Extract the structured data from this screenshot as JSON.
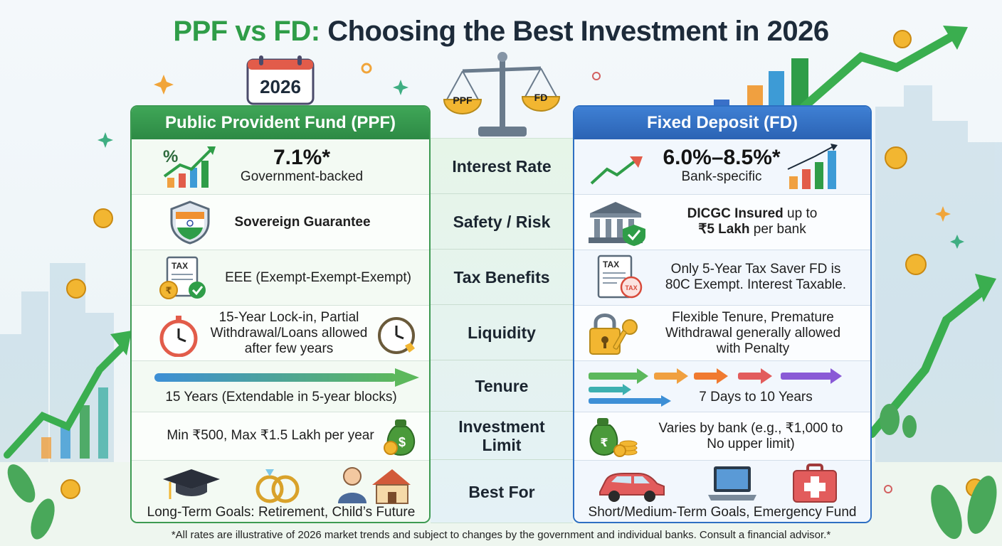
{
  "title": {
    "prefix": "PPF vs FD:",
    "rest": " Choosing the Best Investment in 2026"
  },
  "calendar_year": "2026",
  "scale": {
    "left": "PPF",
    "right": "FD"
  },
  "ppf": {
    "header": "Public Provident Fund (PPF)",
    "interest_rate": "7.1%*",
    "interest_note": "Government-backed",
    "safety": "Sovereign Guarantee",
    "tax": "EEE (Exempt-Exempt-Exempt)",
    "tax_icon_label": "TAX",
    "liquidity": [
      "15-Year Lock-in, Partial",
      "Withdrawal/Loans allowed",
      "after few years"
    ],
    "tenure": "15 Years (Extendable in 5-year blocks)",
    "limit": "Min ₹500, Max ₹1.5 Lakh per year",
    "best_for": "Long-Term Goals: Retirement, Child’s Future"
  },
  "categories": [
    "Interest Rate",
    "Safety / Risk",
    "Tax Benefits",
    "Liquidity",
    "Tenure",
    "Investment Limit",
    "Best For"
  ],
  "fd": {
    "header": "Fixed Deposit (FD)",
    "interest_rate": "6.0%–8.5%*",
    "interest_note": "Bank-specific",
    "safety_bold1": "DICGC Insured",
    "safety_rest1": " up to",
    "safety_bold2": "₹5 Lakh",
    "safety_rest2": " per bank",
    "tax": [
      "Only 5-Year Tax Saver FD is",
      "80C Exempt. Interest Taxable."
    ],
    "tax_icon_label": "TAX",
    "liquidity": [
      "Flexible Tenure, Premature",
      "Withdrawal generally allowed",
      "with Penalty"
    ],
    "tenure": "7 Days to 10 Years",
    "limit": [
      "Varies by bank (e.g., ₹1,000 to",
      "No upper limit)"
    ],
    "best_for": "Short/Medium-Term Goals, Emergency Fund"
  },
  "footnote": "*All rates are illustrative of 2026 market trends and subject to changes by the government and individual banks. Consult a financial advisor.*",
  "colors": {
    "ppf_green": "#2f9d48",
    "fd_blue": "#2e6fc2",
    "title_dark": "#1d2b3a"
  }
}
